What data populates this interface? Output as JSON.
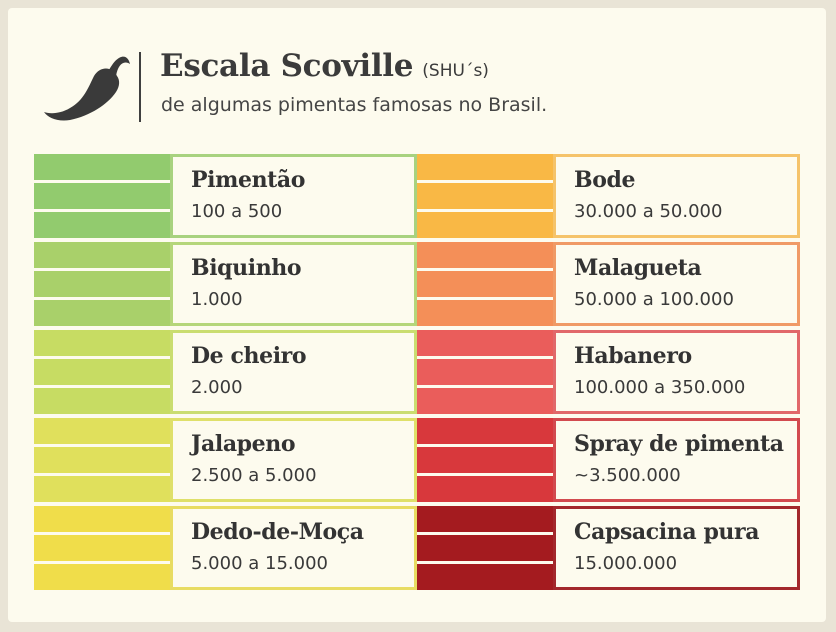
{
  "header": {
    "title": "Escala Scoville",
    "title_unit": "(SHU´s)",
    "subtitle": "de algumas pimentas famosas no Brasil.",
    "icon": "chili-pepper-icon"
  },
  "peppers": [
    {
      "name": "Pimentão",
      "range": "100 a 500",
      "color": "#92cb6e",
      "border": "#a8d27f",
      "column": 0
    },
    {
      "name": "Biquinho",
      "range": "1.000",
      "color": "#a9d06a",
      "border": "#b5d67a",
      "column": 0
    },
    {
      "name": "De cheiro",
      "range": "2.000",
      "color": "#c7dc63",
      "border": "#cadd70",
      "column": 0
    },
    {
      "name": "Jalapeno",
      "range": "2.500 a 5.000",
      "color": "#e0e05c",
      "border": "#dfe06a",
      "column": 0
    },
    {
      "name": "Dedo-de-Moça",
      "range": "5.000 a 15.000",
      "color": "#f0dd4a",
      "border": "#e8dc62",
      "column": 0
    },
    {
      "name": "Bode",
      "range": "30.000 a 50.000",
      "color": "#f9b845",
      "border": "#f5c36a",
      "column": 1
    },
    {
      "name": "Malagueta",
      "range": "50.000 a 100.000",
      "color": "#f48f58",
      "border": "#f09a66",
      "column": 1
    },
    {
      "name": "Habanero",
      "range": "100.000 a 350.000",
      "color": "#ea5d5b",
      "border": "#e1686a",
      "column": 1
    },
    {
      "name": "Spray de pimenta",
      "range": "~3.500.000",
      "color": "#d8383c",
      "border": "#d24a4f",
      "column": 1
    },
    {
      "name": "Capsacina pura",
      "range": "15.000.000",
      "color": "#a41b1f",
      "border": "#a3282c",
      "column": 1
    }
  ]
}
